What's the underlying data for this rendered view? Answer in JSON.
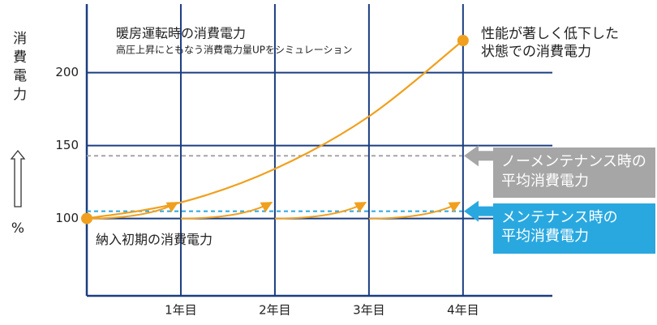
{
  "chart_data": {
    "type": "line",
    "title": "暖房運転時の消費電力",
    "subtitle": "高圧上昇にともなう消費電力量UPをシミュレーション",
    "y_label": "消費電力",
    "y_unit": "%",
    "x": [
      0,
      1,
      2,
      3,
      4
    ],
    "xlim": [
      0,
      4.95
    ],
    "xticks": [
      {
        "value": 1,
        "label": "1年目"
      },
      {
        "value": 2,
        "label": "2年目"
      },
      {
        "value": 3,
        "label": "3年目"
      },
      {
        "value": 4,
        "label": "4年目"
      }
    ],
    "ylim": [
      47,
      247
    ],
    "yticks": [
      100,
      150,
      200
    ],
    "grid": true,
    "grid_color": "#1b3d80",
    "series": [
      {
        "name": "性能が著しく低下した状態での消費電力",
        "color": "#f0a01e",
        "values": [
          100,
          111,
          134,
          170,
          222
        ]
      }
    ],
    "start_label": "納入初期の消費電力",
    "maintenance": [
      {
        "x": [
          0,
          1
        ],
        "values": [
          100,
          111
        ]
      },
      {
        "x": [
          1,
          2
        ],
        "values": [
          100,
          111
        ]
      },
      {
        "x": [
          2,
          3
        ],
        "values": [
          100,
          111
        ]
      },
      {
        "x": [
          3,
          4
        ],
        "values": [
          100,
          111
        ]
      }
    ],
    "maintenance_color": "#f0a01e",
    "reference_lines": [
      {
        "label": "ノーメンテナンス時の平均消費電力",
        "value": 143,
        "color": "#a6a6a6"
      },
      {
        "label": "メンテナンス時の平均消費電力",
        "value": 105,
        "color": "#29a8e0"
      }
    ]
  }
}
